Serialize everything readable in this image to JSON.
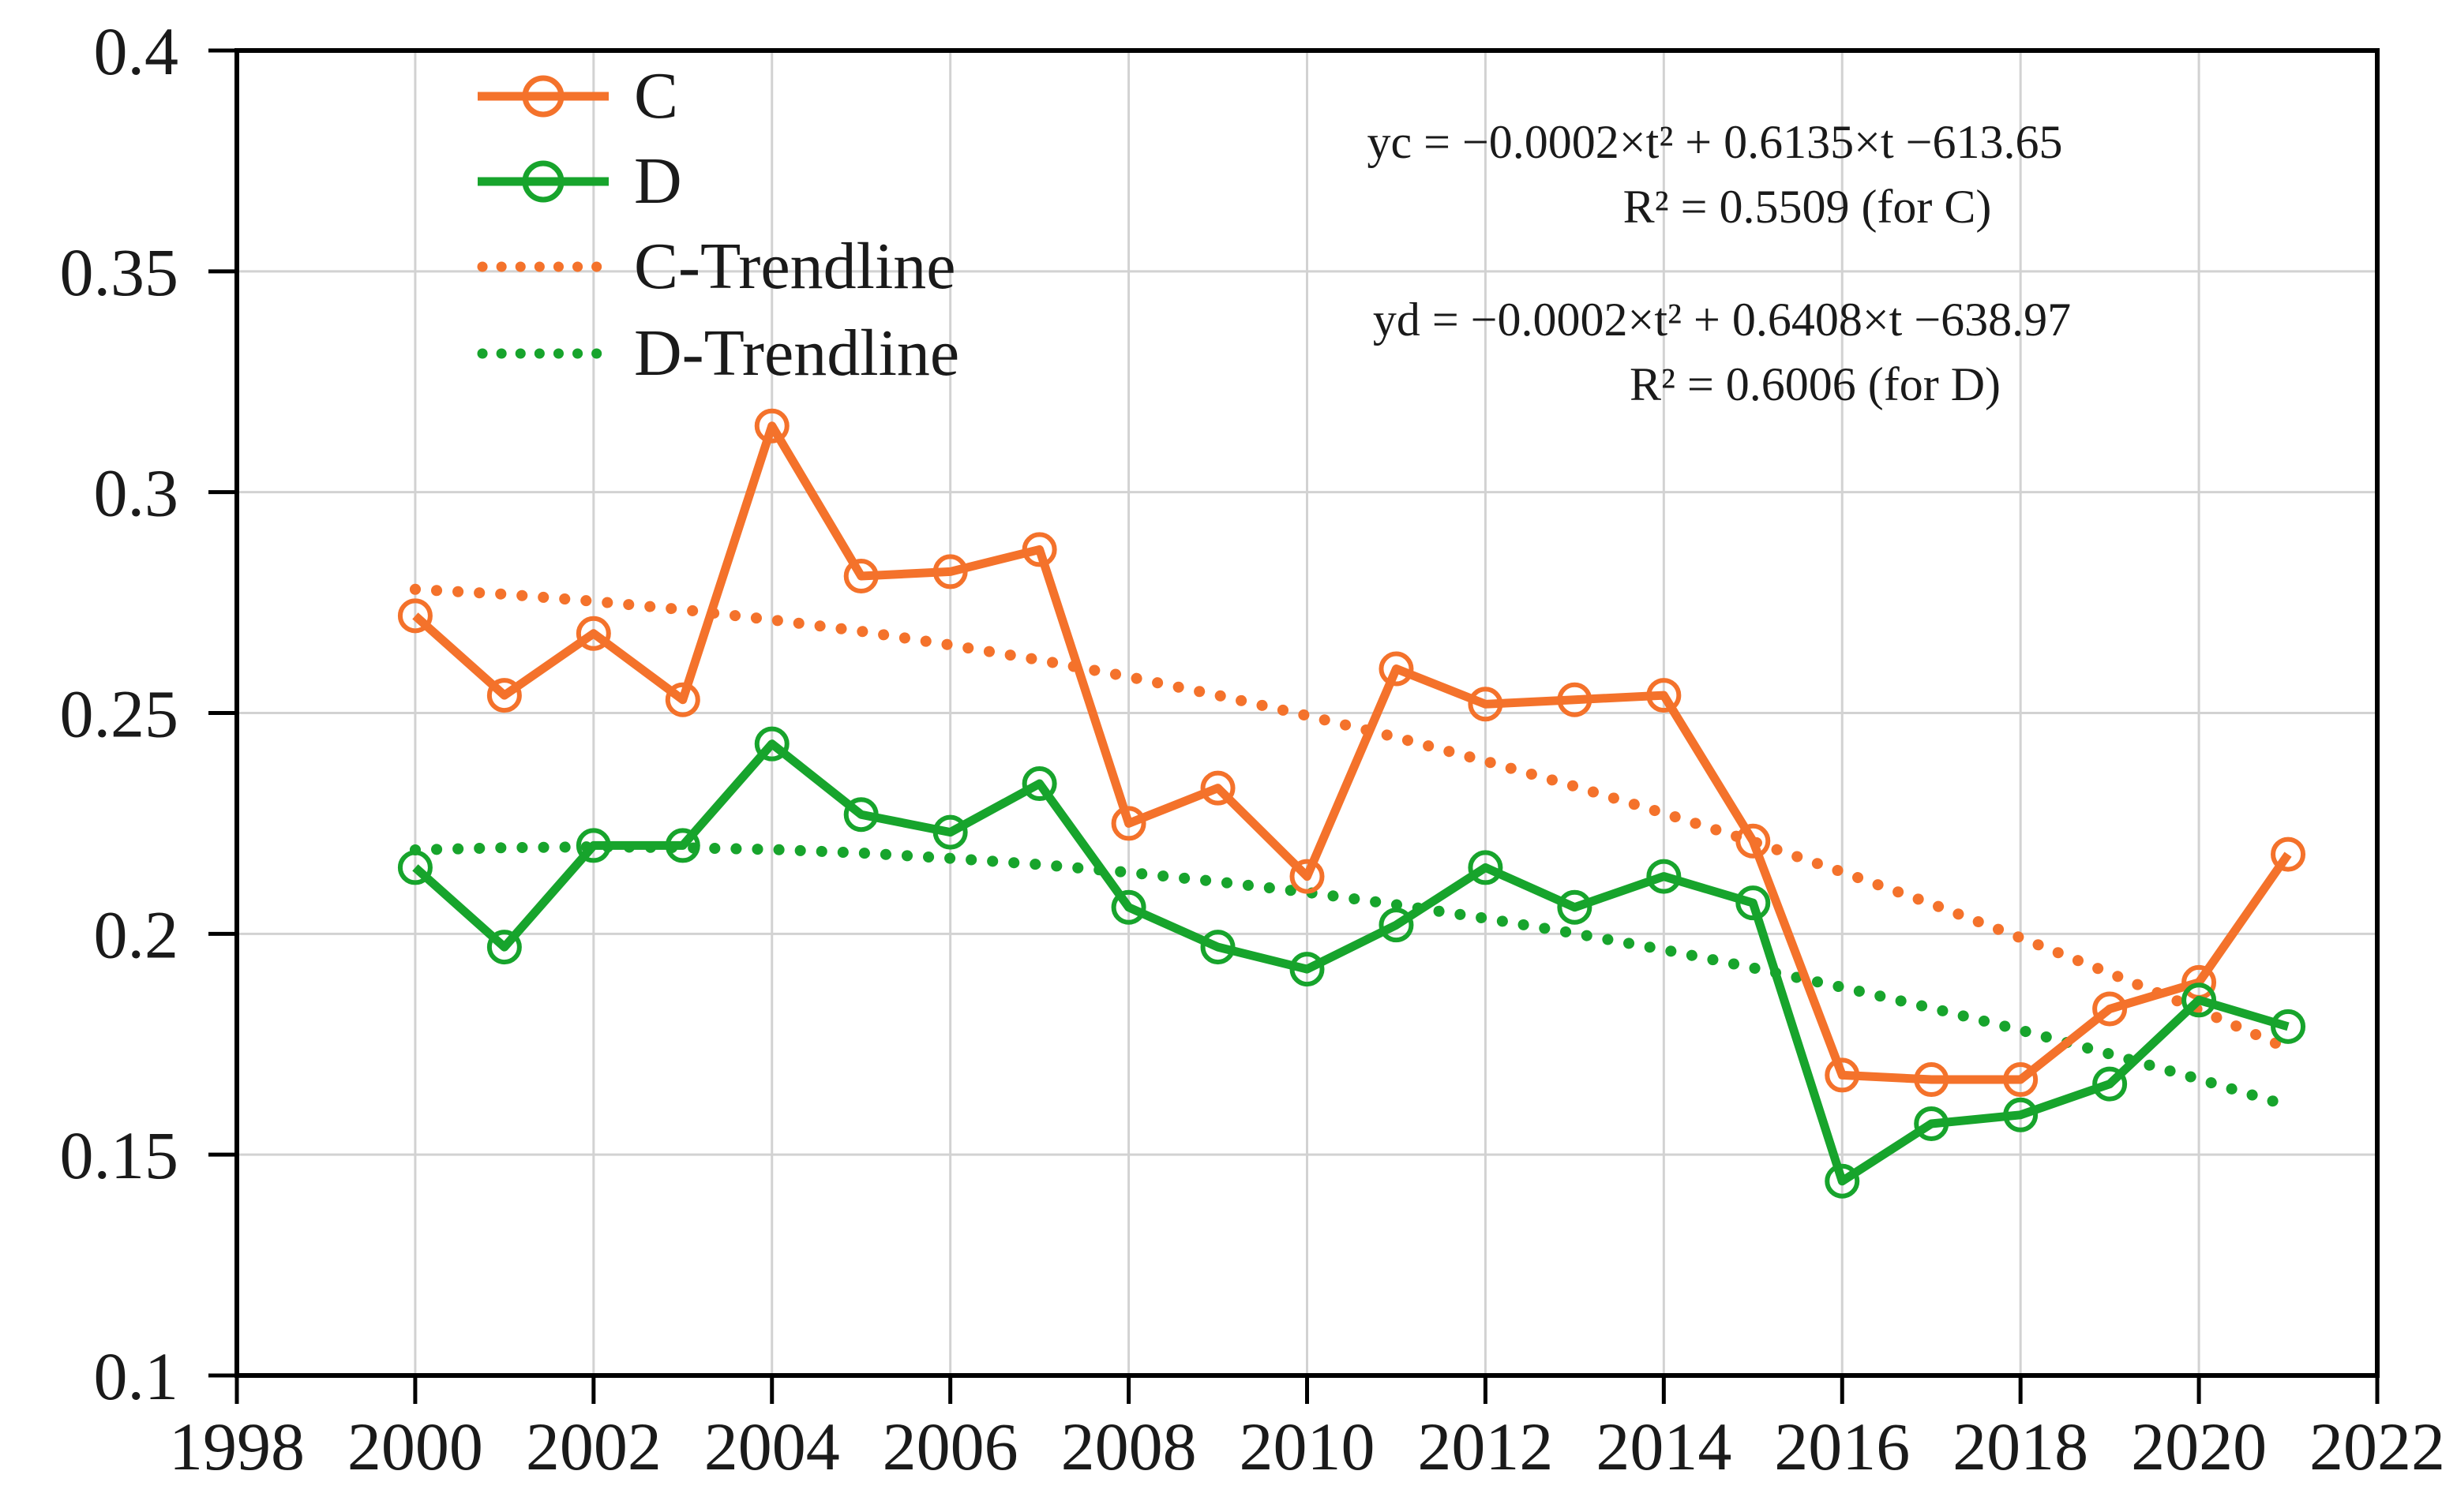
{
  "chart_data": {
    "type": "line",
    "title": "",
    "xlabel": "",
    "ylabel": "",
    "x": [
      2000,
      2001,
      2002,
      2003,
      2004,
      2005,
      2006,
      2007,
      2008,
      2009,
      2010,
      2011,
      2012,
      2013,
      2014,
      2015,
      2016,
      2017,
      2018,
      2019,
      2020,
      2021
    ],
    "series": [
      {
        "name": "C",
        "color": "#F4722B",
        "marker": "open-circle",
        "line": "solid",
        "values": [
          0.272,
          0.254,
          0.268,
          0.253,
          0.315,
          0.281,
          0.282,
          0.287,
          0.225,
          0.233,
          0.213,
          0.26,
          0.252,
          0.253,
          0.254,
          0.221,
          0.168,
          0.167,
          0.167,
          0.183,
          0.189,
          0.218
        ]
      },
      {
        "name": "D",
        "color": "#17A42C",
        "marker": "open-circle",
        "line": "solid",
        "values": [
          0.215,
          0.197,
          0.22,
          0.22,
          0.243,
          0.227,
          0.223,
          0.234,
          0.206,
          0.197,
          0.192,
          0.202,
          0.215,
          0.206,
          0.213,
          0.207,
          0.144,
          0.157,
          0.159,
          0.166,
          0.185,
          0.179
        ]
      }
    ],
    "trendlines": [
      {
        "name": "C-Trendline",
        "color": "#F4722B",
        "line": "dotted",
        "values": [
          0.278,
          0.2769,
          0.2753,
          0.2734,
          0.2711,
          0.2685,
          0.2654,
          0.262,
          0.2582,
          0.254,
          0.2494,
          0.2445,
          0.2391,
          0.2334,
          0.2273,
          0.2209,
          0.214,
          0.2068,
          0.1991,
          0.1911,
          0.1828,
          0.174
        ]
      },
      {
        "name": "D-Trendline",
        "color": "#17A42C",
        "line": "dotted",
        "values": [
          0.219,
          0.2195,
          0.2197,
          0.2195,
          0.2191,
          0.2183,
          0.2171,
          0.2157,
          0.2139,
          0.2118,
          0.2094,
          0.2066,
          0.2035,
          0.2001,
          0.1964,
          0.1923,
          0.1879,
          0.1832,
          0.1782,
          0.1728,
          0.1671,
          0.1611
        ]
      }
    ],
    "xlim": [
      1998,
      2022
    ],
    "ylim": [
      0.1,
      0.4
    ],
    "xtick_labels": [
      "1998",
      "2000",
      "2002",
      "2004",
      "2006",
      "2008",
      "2010",
      "2012",
      "2014",
      "2016",
      "2018",
      "2020",
      "2022"
    ],
    "ytick_labels": [
      "0.1",
      "0.15",
      "0.2",
      "0.25",
      "0.3",
      "0.35",
      "0.4"
    ],
    "grid": true,
    "legend_position": "upper-left",
    "annotations": [
      {
        "text": "yc = −0.0002×t² + 0.6135×t −613.65"
      },
      {
        "text": "R² = 0.5509 (for C)"
      },
      {
        "text": "yd = −0.0002×t² + 0.6408×t −638.97"
      },
      {
        "text": "R² = 0.6006 (for D)"
      }
    ]
  },
  "legend": {
    "items": [
      {
        "label": "C"
      },
      {
        "label": "D"
      },
      {
        "label": "C-Trendline"
      },
      {
        "label": "D-Trendline"
      }
    ]
  },
  "colors": {
    "series_c": "#F4722B",
    "series_d": "#17A42C",
    "grid": "#D2D2D2",
    "axis": "#000000",
    "text": "#1a1a1a",
    "background": "#FFFFFF"
  }
}
